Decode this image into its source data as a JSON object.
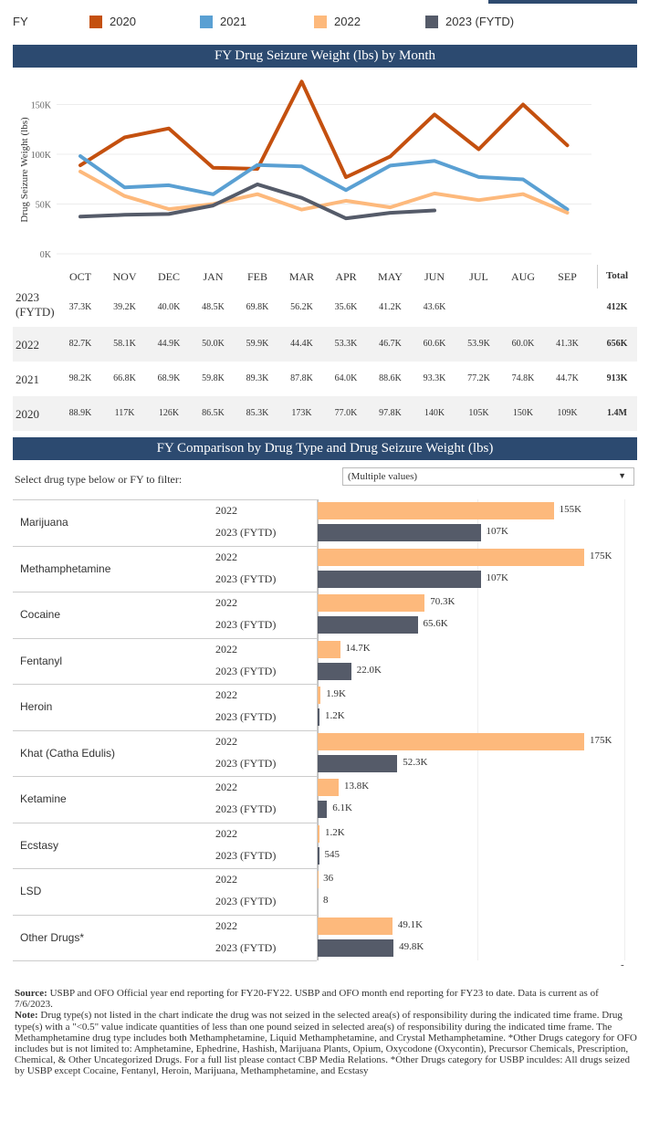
{
  "legend": {
    "label": "FY",
    "items": [
      {
        "name": "2020",
        "color": "#c4500f"
      },
      {
        "name": "2021",
        "color": "#5aa0d3"
      },
      {
        "name": "2022",
        "color": "#fdb97c"
      },
      {
        "name": "2023 (FYTD)",
        "color": "#555b69"
      }
    ]
  },
  "line_chart": {
    "title": "FY Drug Seizure Weight (lbs) by Month",
    "ylabel": "Drug Seizure Weight (lbs)",
    "yticks": [
      "0K",
      "50K",
      "100K",
      "150K"
    ]
  },
  "month_table": {
    "months": [
      "OCT",
      "NOV",
      "DEC",
      "JAN",
      "FEB",
      "MAR",
      "APR",
      "MAY",
      "JUN",
      "JUL",
      "AUG",
      "SEP"
    ],
    "total_header": "Total",
    "rows": [
      {
        "label": "2023 (FYTD)",
        "values": [
          "37.3K",
          "39.2K",
          "40.0K",
          "48.5K",
          "69.8K",
          "56.2K",
          "35.6K",
          "41.2K",
          "43.6K",
          "",
          "",
          ""
        ],
        "total": "412K"
      },
      {
        "label": "2022",
        "values": [
          "82.7K",
          "58.1K",
          "44.9K",
          "50.0K",
          "59.9K",
          "44.4K",
          "53.3K",
          "46.7K",
          "60.6K",
          "53.9K",
          "60.0K",
          "41.3K"
        ],
        "total": "656K"
      },
      {
        "label": "2021",
        "values": [
          "98.2K",
          "66.8K",
          "68.9K",
          "59.8K",
          "89.3K",
          "87.8K",
          "64.0K",
          "88.6K",
          "93.3K",
          "77.2K",
          "74.8K",
          "44.7K"
        ],
        "total": "913K"
      },
      {
        "label": "2020",
        "values": [
          "88.9K",
          "117K",
          "126K",
          "86.5K",
          "85.3K",
          "173K",
          "77.0K",
          "97.8K",
          "140K",
          "105K",
          "150K",
          "109K"
        ],
        "total": "1.4M"
      }
    ]
  },
  "bar_chart": {
    "title": "FY Comparison by Drug Type and Drug Seizure Weight (lbs)",
    "filter_label": "Select drug type below or FY to filter:",
    "filter_value": "(Multiple values)",
    "dash": "-"
  },
  "chart_data": [
    {
      "type": "line",
      "title": "FY Drug Seizure Weight (lbs) by Month",
      "ylabel": "Drug Seizure Weight (lbs)",
      "ylim": [
        0,
        150000
      ],
      "categories": [
        "OCT",
        "NOV",
        "DEC",
        "JAN",
        "FEB",
        "MAR",
        "APR",
        "MAY",
        "JUN",
        "JUL",
        "AUG",
        "SEP"
      ],
      "series": [
        {
          "name": "2020",
          "color": "#c4500f",
          "values": [
            88900,
            117000,
            126000,
            86500,
            85300,
            173000,
            77000,
            97800,
            140000,
            105000,
            150000,
            109000
          ]
        },
        {
          "name": "2021",
          "color": "#5aa0d3",
          "values": [
            98200,
            66800,
            68900,
            59800,
            89300,
            87800,
            64000,
            88600,
            93300,
            77200,
            74800,
            44700
          ]
        },
        {
          "name": "2022",
          "color": "#fdb97c",
          "values": [
            82700,
            58100,
            44900,
            50000,
            59900,
            44400,
            53300,
            46700,
            60600,
            53900,
            60000,
            41300
          ]
        },
        {
          "name": "2023 (FYTD)",
          "color": "#555b69",
          "values": [
            37300,
            39200,
            40000,
            48500,
            69800,
            56200,
            35600,
            41200,
            43600,
            null,
            null,
            null
          ]
        }
      ]
    },
    {
      "type": "bar",
      "title": "FY Comparison by Drug Type and Drug Seizure Weight (lbs)",
      "categories": [
        "Marijuana",
        "Methamphetamine",
        "Cocaine",
        "Fentanyl",
        "Heroin",
        "Khat (Catha Edulis)",
        "Ketamine",
        "Ecstasy",
        "LSD",
        "Other Drugs*"
      ],
      "series": [
        {
          "name": "2022",
          "color": "#fdb97c",
          "values": [
            155000,
            175000,
            70300,
            14700,
            1900,
            175000,
            13800,
            1200,
            36,
            49100
          ],
          "labels": [
            "155K",
            "175K",
            "70.3K",
            "14.7K",
            "1.9K",
            "175K",
            "13.8K",
            "1.2K",
            "36",
            "49.1K"
          ]
        },
        {
          "name": "2023 (FYTD)",
          "color": "#555b69",
          "values": [
            107000,
            107000,
            65600,
            22000,
            1200,
            52300,
            6100,
            545,
            8,
            49800
          ],
          "labels": [
            "107K",
            "107K",
            "65.6K",
            "22.0K",
            "1.2K",
            "52.3K",
            "6.1K",
            "545",
            "8",
            "49.8K"
          ]
        }
      ]
    }
  ],
  "notes": {
    "source_label": "Source:",
    "source_text": " USBP and OFO Official year end reporting for FY20-FY22. USBP and OFO month end reporting for FY23 to date. Data is current as of 7/6/2023.",
    "note_label": "Note:",
    "note_text": " Drug type(s) not listed in the chart indicate the drug was not seized in the selected area(s) of responsibility during the indicated time frame. Drug type(s) with a \"<0.5\" value indicate quantities of less than one pound seized in selected area(s) of responsibility during the indicated time frame. The Methamphetamine drug type includes both Methamphetamine, Liquid Methamphetamine, and Crystal Methamphetamine. *Other Drugs category for OFO includes but is not limited to: Amphetamine, Ephedrine, Hashish, Marijuana Plants, Opium, Oxycodone (Oxycontin), Precursor Chemicals, Prescription, Chemical, & Other Uncategorized Drugs. For a full list please contact CBP Media Relations.  *Other Drugs category for USBP inculdes: All drugs seized by USBP except Cocaine, Fentanyl, Heroin, Marijuana, Methamphetamine, and Ecstasy"
  }
}
